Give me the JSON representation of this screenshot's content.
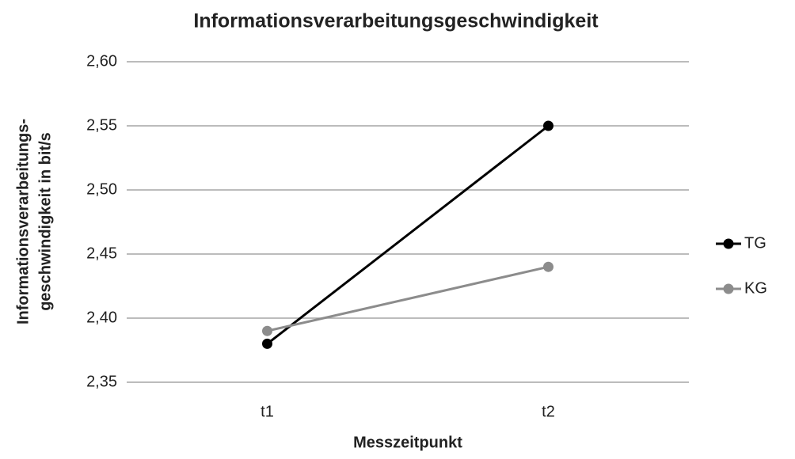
{
  "chart_data": {
    "type": "line",
    "title": "Informationsverarbeitungsgeschwindigkeit",
    "xlabel": "Messzeitpunkt",
    "ylabel": [
      "Informationsverarbeitungs-",
      "geschwindigkeit in bit/s"
    ],
    "categories": [
      "t1",
      "t2"
    ],
    "series": [
      {
        "name": "TG",
        "color": "#000000",
        "values": [
          2.38,
          2.55
        ]
      },
      {
        "name": "KG",
        "color": "#8c8c8c",
        "values": [
          2.39,
          2.44
        ]
      }
    ],
    "ylim": [
      2.35,
      2.6
    ],
    "yticks": [
      {
        "value": 2.35,
        "label": "2,35"
      },
      {
        "value": 2.4,
        "label": "2,40"
      },
      {
        "value": 2.45,
        "label": "2,45"
      },
      {
        "value": 2.5,
        "label": "2,50"
      },
      {
        "value": 2.55,
        "label": "2,55"
      },
      {
        "value": 2.6,
        "label": "2,60"
      }
    ],
    "grid": true,
    "legend": "right"
  }
}
